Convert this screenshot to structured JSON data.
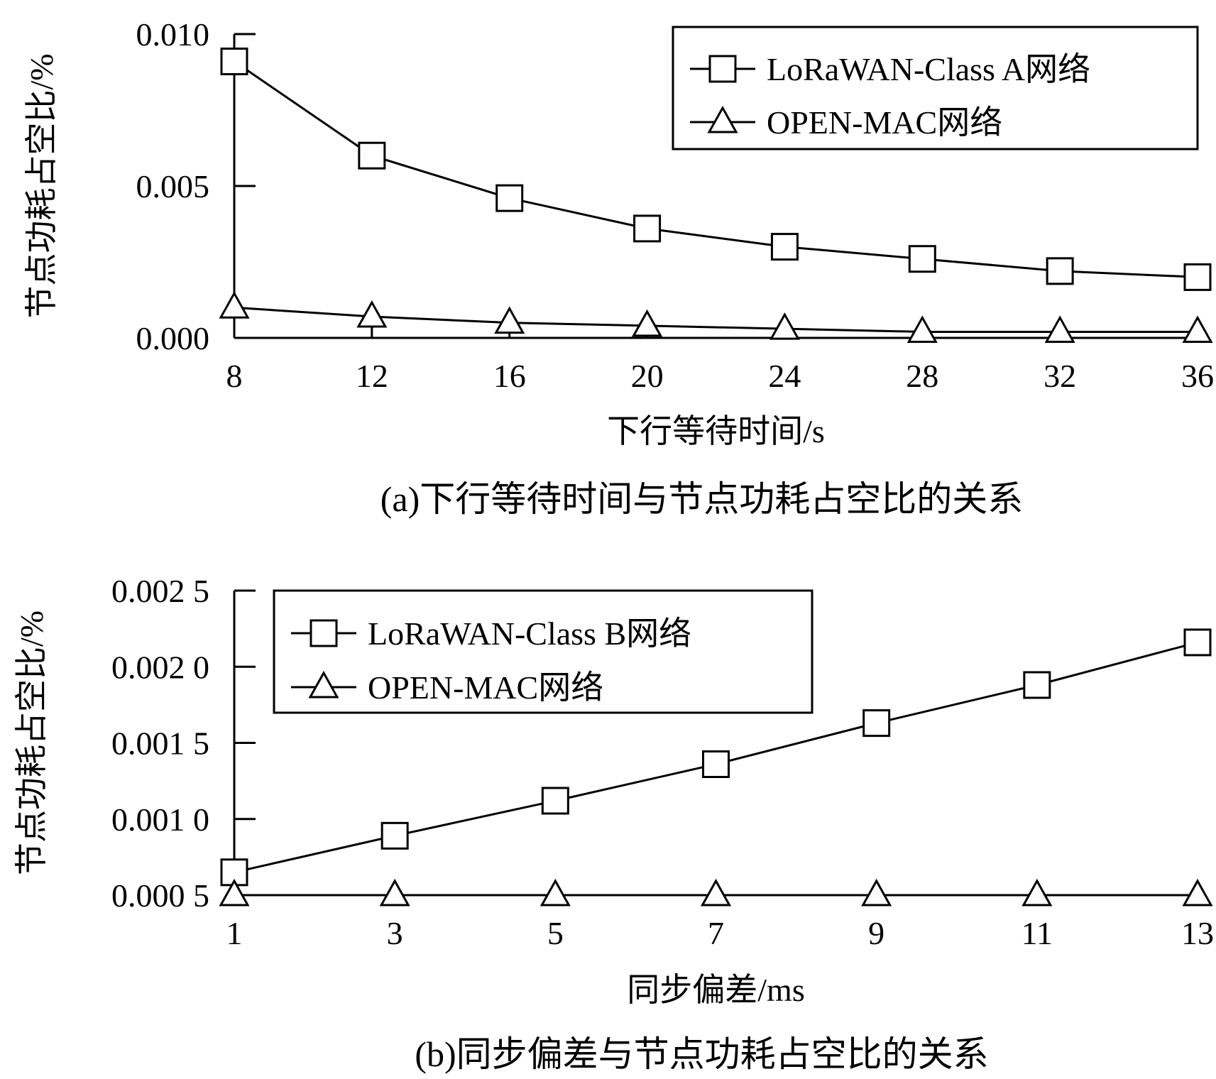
{
  "chart_data": [
    {
      "type": "line",
      "caption": "(a)下行等待时间与节点功耗占空比的关系",
      "xlabel": "下行等待时间/s",
      "ylabel": "节点功耗占空比/%",
      "x": [
        8,
        12,
        16,
        20,
        24,
        28,
        32,
        36
      ],
      "x_ticks": [
        "8",
        "12",
        "16",
        "20",
        "24",
        "28",
        "32",
        "36"
      ],
      "xlim": [
        8,
        36
      ],
      "y_ticks": [
        "0.000",
        "0.005",
        "0.010"
      ],
      "y_tick_values": [
        0.0,
        0.005,
        0.01
      ],
      "ylim": [
        0.0,
        0.01
      ],
      "grid": false,
      "legend_position": "top-right",
      "series": [
        {
          "name": "LoRaWAN-Class A网络",
          "marker": "square",
          "values": [
            0.0091,
            0.006,
            0.0046,
            0.0036,
            0.003,
            0.0026,
            0.0022,
            0.002
          ]
        },
        {
          "name": "OPEN-MAC网络",
          "marker": "triangle",
          "values": [
            0.001,
            0.0007,
            0.0005,
            0.0004,
            0.0003,
            0.0002,
            0.0002,
            0.0002
          ]
        }
      ]
    },
    {
      "type": "line",
      "caption": "(b)同步偏差与节点功耗占空比的关系",
      "xlabel": "同步偏差/ms",
      "ylabel": "节点功耗占空比/%",
      "x": [
        1,
        3,
        5,
        7,
        9,
        11,
        13
      ],
      "x_ticks": [
        "1",
        "3",
        "5",
        "7",
        "9",
        "11",
        "13"
      ],
      "xlim": [
        1,
        13
      ],
      "y_ticks": [
        "0.000 5",
        "0.001 0",
        "0.001 5",
        "0.002 0",
        "0.002 5"
      ],
      "y_tick_values": [
        0.0005,
        0.001,
        0.0015,
        0.002,
        0.0025
      ],
      "ylim": [
        0.0005,
        0.0025
      ],
      "grid": false,
      "legend_position": "top-left",
      "series": [
        {
          "name": "LoRaWAN-Class B网络",
          "marker": "square",
          "values": [
            0.00065,
            0.00089,
            0.00112,
            0.00136,
            0.00163,
            0.00188,
            0.00216
          ]
        },
        {
          "name": "OPEN-MAC网络",
          "marker": "triangle",
          "values": [
            0.0005,
            0.0005,
            0.0005,
            0.0005,
            0.0005,
            0.0005,
            0.0005
          ]
        }
      ]
    }
  ]
}
